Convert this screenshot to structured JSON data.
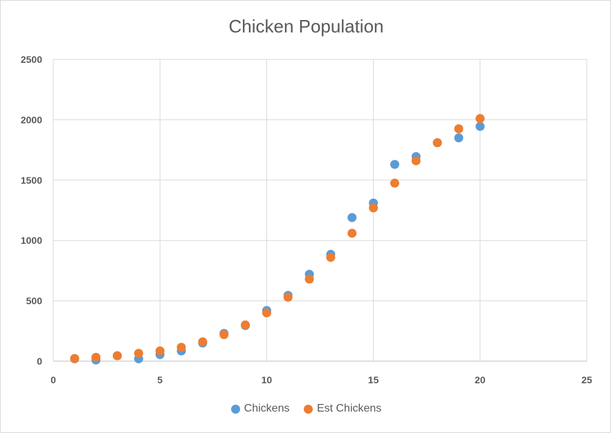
{
  "chart_data": {
    "type": "scatter",
    "title": "Chicken Population",
    "xlabel": "",
    "ylabel": "",
    "xlim": [
      0,
      25
    ],
    "ylim": [
      0,
      2500
    ],
    "x_ticks": [
      0,
      5,
      10,
      15,
      20,
      25
    ],
    "y_ticks": [
      0,
      500,
      1000,
      1500,
      2000,
      2500
    ],
    "grid": true,
    "legend_position": "bottom",
    "series": [
      {
        "name": "Chickens",
        "color": "#5b9bd5",
        "x": [
          1,
          2,
          3,
          4,
          5,
          6,
          7,
          8,
          9,
          10,
          11,
          12,
          13,
          14,
          15,
          16,
          17,
          18,
          19,
          20
        ],
        "y": [
          20,
          10,
          45,
          20,
          55,
          85,
          150,
          230,
          295,
          420,
          545,
          720,
          885,
          1190,
          1310,
          1630,
          1695,
          1810,
          1850,
          1945
        ]
      },
      {
        "name": "Est Chickens",
        "color": "#ed7d31",
        "x": [
          1,
          2,
          3,
          4,
          5,
          6,
          7,
          8,
          9,
          10,
          11,
          12,
          13,
          14,
          15,
          16,
          17,
          18,
          19,
          20
        ],
        "y": [
          22,
          32,
          45,
          65,
          85,
          115,
          160,
          220,
          300,
          400,
          530,
          680,
          860,
          1060,
          1270,
          1475,
          1660,
          1810,
          1925,
          2010
        ]
      }
    ]
  }
}
